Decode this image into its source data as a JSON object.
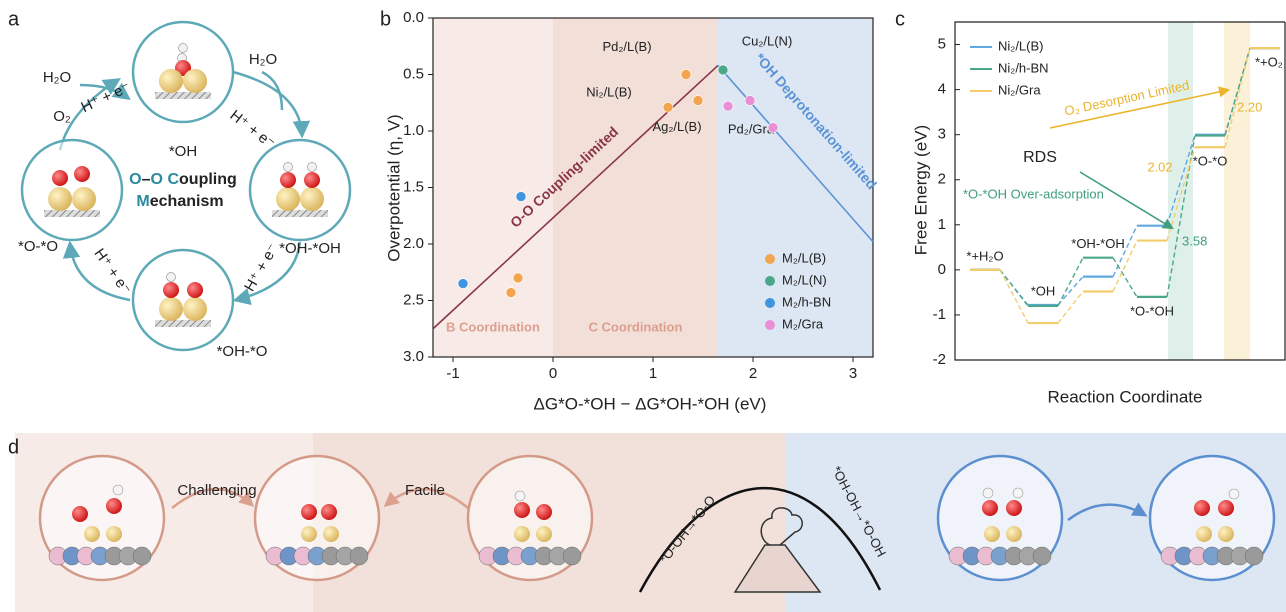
{
  "panel_labels": [
    "a",
    "b",
    "c",
    "d"
  ],
  "panel_a": {
    "center_lines": [
      "O–O Coupling",
      "Mechanism"
    ],
    "labels": [
      "H₂O",
      "H⁺ + e⁻",
      "*OH",
      "H₂O",
      "H⁺ + e⁻",
      "O₂",
      "*O-*O",
      "*OH-*OH",
      "H⁺ + e⁻",
      "H⁺ + e⁻",
      "*OH-*O"
    ]
  },
  "chart_data": [
    {
      "type": "scatter",
      "x_label": "ΔG*O-*OH − ΔG*OH-*OH (eV)",
      "y_label": "Overpotential (η, V)",
      "xlim": [
        -1.2,
        3.2
      ],
      "xticks": [
        -1,
        0,
        1,
        2,
        3
      ],
      "ylim": [
        0,
        3
      ],
      "y_inverted": true,
      "yticks": [
        {
          "value": 0,
          "label": "0.0"
        },
        {
          "value": 0.5,
          "label": "0.5"
        },
        {
          "value": 1,
          "label": "1.0"
        },
        {
          "value": 1.5,
          "label": "1.5"
        },
        {
          "value": 2,
          "label": "2.0"
        },
        {
          "value": 2.5,
          "label": "2.5"
        },
        {
          "value": 3,
          "label": "3.0"
        }
      ],
      "regions": [
        {
          "label": "B Coordination",
          "x": [
            -1.2,
            0
          ],
          "color": "#f8ebe7"
        },
        {
          "label": "C Coordination",
          "x": [
            0,
            1.65
          ],
          "color": "#f2dfd8"
        },
        {
          "x": [
            1.65,
            3.2
          ],
          "color": "#dde7f3"
        }
      ],
      "lines": [
        {
          "name": "O-O Coupling-limited",
          "color": "#8a3548",
          "x": [
            -1.2,
            1.65
          ],
          "y": [
            2.75,
            0.42
          ]
        },
        {
          "name": "*OH Deprotonation-limited",
          "color": "#5b93d6",
          "x": [
            1.65,
            3.2
          ],
          "y": [
            0.42,
            1.98
          ]
        }
      ],
      "series": [
        {
          "name": "M₂/L(B)",
          "color": "#f2a54e",
          "x": [
            1.33,
            1.15,
            1.45,
            -0.35,
            -0.42
          ],
          "values": [
            0.5,
            0.79,
            0.73,
            2.3,
            2.43
          ],
          "point_labels": [
            "Pd₂/L(B)",
            "Ni₂/L(B)",
            "Ag₂/L(B)",
            null,
            null
          ]
        },
        {
          "name": "M₂/L(N)",
          "color": "#4aa889",
          "x": [
            1.7
          ],
          "values": [
            0.46
          ],
          "point_labels": [
            "Cu₂/L(N)"
          ]
        },
        {
          "name": "M₂/h-BN",
          "color": "#3f95e0",
          "x": [
            -0.32,
            -0.9
          ],
          "values": [
            1.58,
            2.35
          ],
          "point_labels": [
            null,
            null
          ]
        },
        {
          "name": "M₂/Gra",
          "color": "#e98fd6",
          "x": [
            1.75,
            1.97,
            2.2
          ],
          "values": [
            0.78,
            0.73,
            0.97
          ],
          "point_labels": [
            "Pd₂/Gra",
            null,
            null
          ]
        }
      ],
      "legend": "lower right"
    },
    {
      "type": "energy_profile",
      "x_label": "Reaction Coordinate",
      "y_label": "Free Energy (eV)",
      "ylim": [
        -2,
        5.5
      ],
      "yticks": [
        -2,
        -1,
        0,
        1,
        2,
        3,
        4,
        5
      ],
      "categories": [
        "*+H₂O",
        "*OH",
        "*OH-*OH",
        "*O-*OH",
        "*O-*O",
        "*+O₂"
      ],
      "series": [
        {
          "name": "Ni₂/L(B)",
          "color": "#5fa8e0",
          "values": [
            0,
            -0.78,
            -0.15,
            0.98,
            3.0,
            4.92
          ]
        },
        {
          "name": "Ni₂/h-BN",
          "color": "#4aa889",
          "values": [
            0,
            -0.8,
            0.27,
            -0.6,
            2.98,
            4.92
          ]
        },
        {
          "name": "Ni₂/Gra",
          "color": "#f3cd6a",
          "values": [
            0,
            -1.18,
            -0.48,
            0.65,
            2.72,
            4.92
          ]
        }
      ],
      "legend": "upper left",
      "annotations": [
        {
          "text": "RDS",
          "color": "#222222"
        },
        {
          "text": "*O-*OH Over-adsorption",
          "color": "#3f9e7e"
        },
        {
          "text": "O₂ Desorption Limited",
          "color": "#eab52c"
        },
        {
          "text": "2.20",
          "color": "#eab52c"
        },
        {
          "text": "2.02",
          "color": "#eab52c"
        },
        {
          "text": "3.58",
          "color": "#3f9e7e"
        }
      ]
    }
  ],
  "panel_d": {
    "captions": [
      "Challenging",
      "Facile"
    ],
    "reactions": [
      "*O-OH→*O-O",
      "*OH-OH→*O-OH"
    ]
  }
}
